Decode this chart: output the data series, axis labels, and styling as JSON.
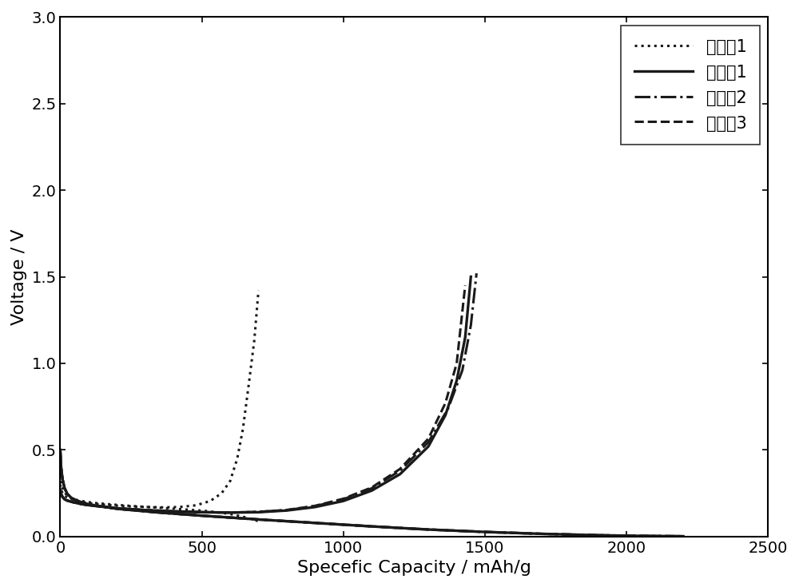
{
  "xlabel": "Specefic Capacity / mAh/g",
  "ylabel": "Voltage / V",
  "xlim": [
    0,
    2500
  ],
  "ylim": [
    0.0,
    3.0
  ],
  "xticks": [
    0,
    500,
    1000,
    1500,
    2000,
    2500
  ],
  "yticks": [
    0.0,
    0.5,
    1.0,
    1.5,
    2.0,
    2.5,
    3.0
  ],
  "legend_labels": [
    "对比契1",
    "实施契1",
    "实施契2",
    "实施契3"
  ],
  "line_color": "#1a1a1a",
  "background_color": "#ffffff",
  "font_size": 16,
  "legend_font_size": 15,
  "lw_dotted": 2.2,
  "lw_solid": 2.4,
  "lw_dashdot": 2.2,
  "lw_dashed": 2.2,
  "duibi1_charge_cap": [
    0,
    3,
    8,
    15,
    25,
    40,
    60,
    90,
    130,
    180,
    240,
    300,
    360,
    420,
    480,
    530,
    570,
    600,
    625,
    645,
    665,
    685,
    700
  ],
  "duibi1_charge_vol": [
    0.3,
    0.27,
    0.25,
    0.235,
    0.225,
    0.215,
    0.205,
    0.195,
    0.187,
    0.18,
    0.174,
    0.17,
    0.168,
    0.17,
    0.18,
    0.205,
    0.25,
    0.32,
    0.45,
    0.62,
    0.87,
    1.13,
    1.42
  ],
  "duibi1_discharge_cap": [
    0,
    3,
    8,
    15,
    25,
    40,
    60,
    90,
    130,
    180,
    250,
    330,
    420,
    510,
    600,
    660,
    700
  ],
  "duibi1_discharge_vol": [
    0.47,
    0.35,
    0.28,
    0.255,
    0.235,
    0.22,
    0.21,
    0.2,
    0.192,
    0.185,
    0.176,
    0.168,
    0.158,
    0.148,
    0.13,
    0.108,
    0.088
  ],
  "shishi1_charge_cap": [
    0,
    3,
    8,
    15,
    25,
    40,
    60,
    90,
    130,
    200,
    300,
    400,
    500,
    600,
    700,
    800,
    900,
    1000,
    1100,
    1200,
    1300,
    1360,
    1400,
    1430,
    1450
  ],
  "shishi1_charge_vol": [
    0.27,
    0.245,
    0.228,
    0.215,
    0.207,
    0.2,
    0.192,
    0.183,
    0.175,
    0.163,
    0.152,
    0.145,
    0.14,
    0.138,
    0.14,
    0.15,
    0.17,
    0.205,
    0.265,
    0.36,
    0.52,
    0.7,
    0.9,
    1.15,
    1.5
  ],
  "shishi1_discharge_cap": [
    0,
    3,
    8,
    15,
    25,
    40,
    60,
    100,
    200,
    350,
    500,
    700,
    900,
    1100,
    1300,
    1500,
    1700,
    1900,
    2050,
    2200
  ],
  "shishi1_discharge_vol": [
    0.5,
    0.4,
    0.33,
    0.28,
    0.245,
    0.222,
    0.205,
    0.185,
    0.16,
    0.138,
    0.12,
    0.098,
    0.078,
    0.058,
    0.04,
    0.026,
    0.015,
    0.007,
    0.003,
    0.001
  ],
  "shishi2_charge_cap": [
    0,
    3,
    8,
    15,
    25,
    40,
    60,
    90,
    130,
    200,
    300,
    400,
    500,
    600,
    700,
    800,
    900,
    1000,
    1100,
    1200,
    1300,
    1370,
    1420,
    1450,
    1470
  ],
  "shishi2_charge_vol": [
    0.27,
    0.245,
    0.228,
    0.215,
    0.207,
    0.2,
    0.192,
    0.183,
    0.175,
    0.163,
    0.152,
    0.145,
    0.14,
    0.138,
    0.142,
    0.152,
    0.175,
    0.215,
    0.278,
    0.38,
    0.545,
    0.74,
    0.96,
    1.22,
    1.52
  ],
  "shishi2_discharge_cap": [
    0,
    3,
    8,
    15,
    25,
    40,
    60,
    100,
    200,
    350,
    500,
    700,
    900,
    1100,
    1300,
    1500,
    1700,
    1900,
    2050,
    2200
  ],
  "shishi2_discharge_vol": [
    0.5,
    0.4,
    0.33,
    0.28,
    0.245,
    0.222,
    0.205,
    0.185,
    0.16,
    0.138,
    0.12,
    0.098,
    0.078,
    0.058,
    0.04,
    0.026,
    0.015,
    0.007,
    0.003,
    0.001
  ],
  "shishi3_charge_cap": [
    0,
    3,
    8,
    15,
    25,
    40,
    60,
    90,
    130,
    200,
    300,
    400,
    500,
    600,
    700,
    800,
    900,
    1000,
    1100,
    1200,
    1300,
    1360,
    1400,
    1430
  ],
  "shishi3_charge_vol": [
    0.27,
    0.245,
    0.228,
    0.215,
    0.207,
    0.2,
    0.192,
    0.183,
    0.175,
    0.163,
    0.152,
    0.145,
    0.14,
    0.138,
    0.142,
    0.153,
    0.177,
    0.218,
    0.283,
    0.39,
    0.565,
    0.77,
    1.0,
    1.45
  ],
  "shishi3_discharge_cap": [
    0,
    3,
    8,
    15,
    25,
    40,
    60,
    100,
    200,
    350,
    500,
    700,
    900,
    1100,
    1300,
    1500,
    1700,
    1900,
    2050,
    2200
  ],
  "shishi3_discharge_vol": [
    0.5,
    0.4,
    0.33,
    0.28,
    0.245,
    0.222,
    0.205,
    0.185,
    0.16,
    0.138,
    0.12,
    0.098,
    0.078,
    0.058,
    0.04,
    0.026,
    0.015,
    0.007,
    0.003,
    0.001
  ]
}
